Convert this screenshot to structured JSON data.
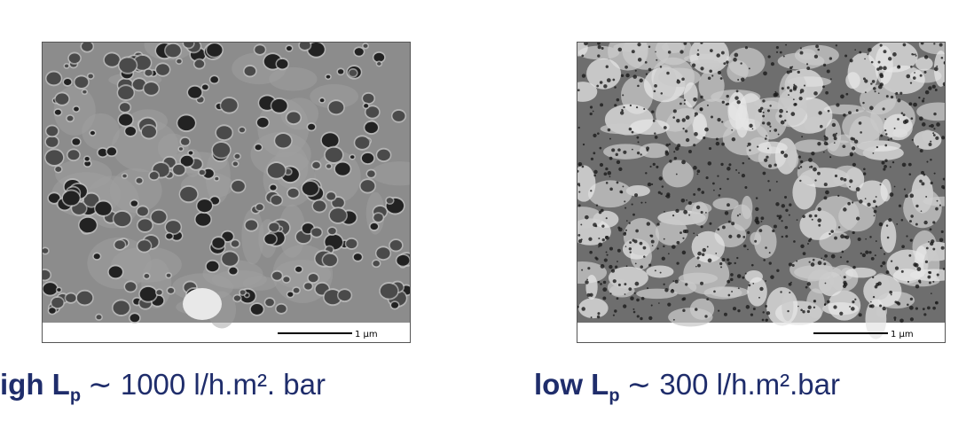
{
  "panels": [
    {
      "scale_label": "1 μm",
      "caption": {
        "bold": "igh L",
        "subscript": "p",
        "rest": "∼ 1000 l/h.m². bar"
      }
    },
    {
      "scale_label": "1 μm",
      "caption": {
        "bold": "low L",
        "subscript": "p",
        "rest": "∼ 300 l/h.m².bar"
      }
    }
  ]
}
